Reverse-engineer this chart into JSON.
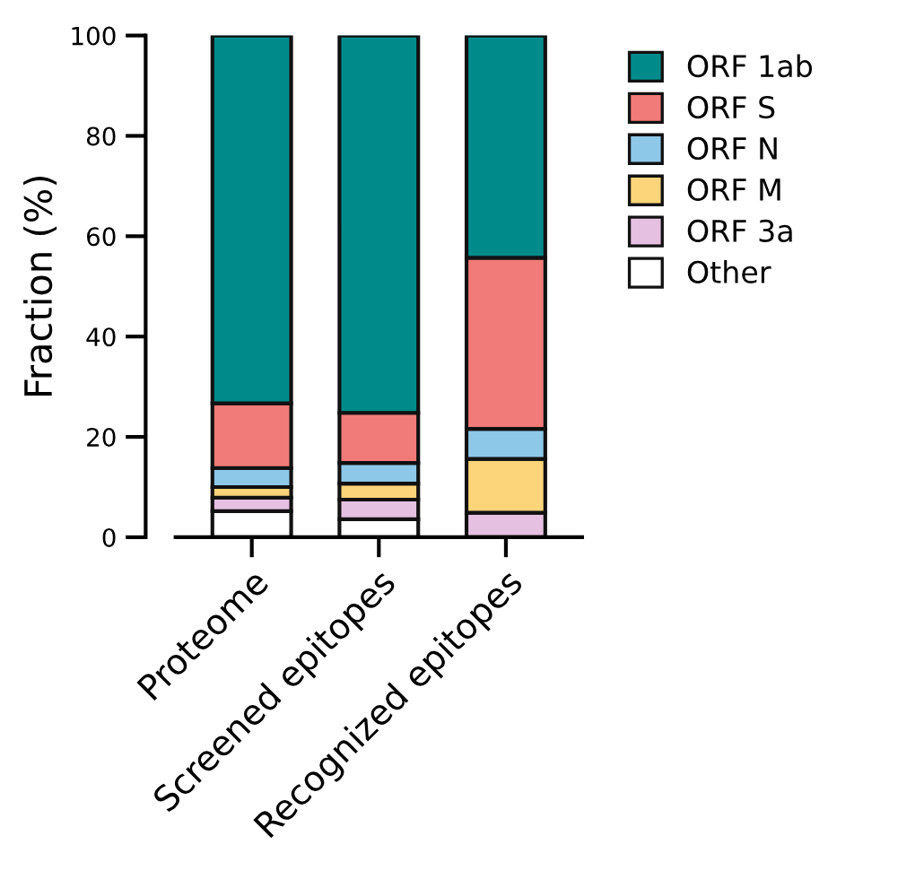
{
  "chart_data": {
    "type": "bar",
    "stacked": true,
    "ylabel": "Fraction (%)",
    "categories": [
      "Proteome",
      "Screened epitopes",
      "Recognized epitopes"
    ],
    "series": [
      {
        "name": "Other",
        "color": "#ffffff",
        "values": [
          5.2,
          3.6,
          0
        ]
      },
      {
        "name": "ORF 3a",
        "color": "#e6c0e0",
        "values": [
          2.7,
          3.9,
          4.9
        ]
      },
      {
        "name": "ORF M",
        "color": "#fcd47a",
        "values": [
          2.1,
          3.2,
          10.7
        ]
      },
      {
        "name": "ORF N",
        "color": "#8ec8e8",
        "values": [
          3.8,
          4.1,
          6.0
        ]
      },
      {
        "name": "ORF S",
        "color": "#f07b78",
        "values": [
          12.9,
          10.0,
          34.1
        ]
      },
      {
        "name": "ORF 1ab",
        "color": "#008b8b",
        "values": [
          73.3,
          75.2,
          44.3
        ]
      }
    ],
    "ylim": [
      0,
      100
    ],
    "yticks": [
      0,
      20,
      40,
      60,
      80,
      100
    ],
    "grid": false,
    "legend": "top right"
  }
}
